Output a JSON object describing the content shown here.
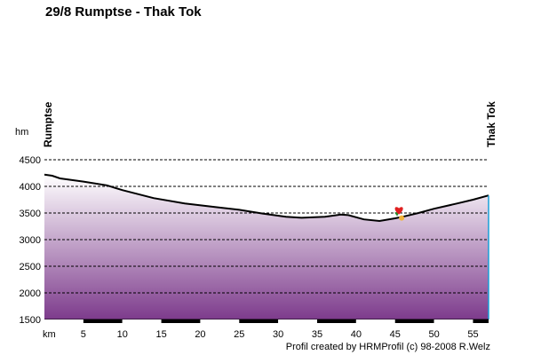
{
  "chart_data": {
    "type": "area",
    "title": "29/8 Rumptse - Thak Tok",
    "ylabel": "hm",
    "xlabel": "km",
    "start_location": "Rumptse",
    "end_location": "Thak Tok",
    "credit": "Profil created by HRMProfil (c) 98-2008 R.Welz",
    "xlim": [
      0,
      57
    ],
    "ylim": [
      1500,
      4500
    ],
    "x_ticks": [
      5,
      10,
      15,
      20,
      25,
      30,
      35,
      40,
      45,
      50,
      55
    ],
    "y_ticks": [
      4500,
      4000,
      3500,
      3000,
      2500,
      2000,
      1500
    ],
    "grid": "horizontal dashed",
    "x": [
      0,
      1,
      2,
      5,
      8,
      10,
      14,
      18,
      22,
      25,
      28,
      31,
      33,
      36,
      38,
      39,
      41,
      43,
      45,
      46,
      48,
      50,
      53,
      55,
      57
    ],
    "y": [
      4220,
      4200,
      4150,
      4090,
      4020,
      3930,
      3780,
      3680,
      3610,
      3560,
      3490,
      3430,
      3410,
      3430,
      3470,
      3460,
      3380,
      3350,
      3400,
      3430,
      3500,
      3580,
      3680,
      3750,
      3830
    ],
    "marker": {
      "x": 45.5,
      "y": 3540,
      "icon": "heart-flower-icon"
    },
    "colors": {
      "fill_top": "#ffffff",
      "fill_bottom": "#7d3b8c",
      "line": "#000000",
      "accent": "#1aa0d8"
    }
  }
}
